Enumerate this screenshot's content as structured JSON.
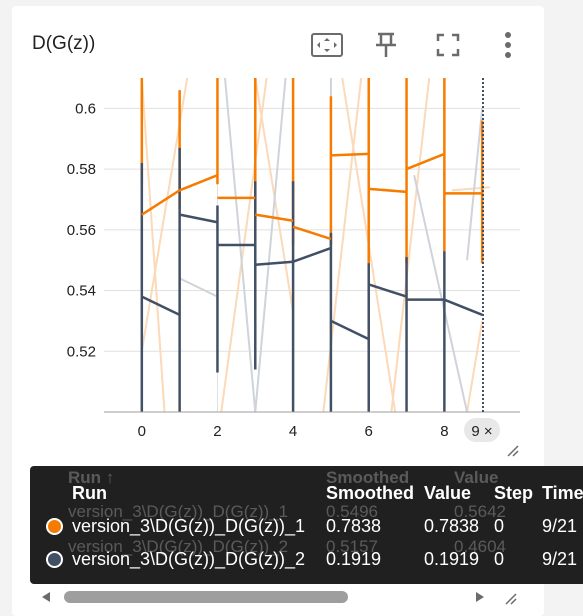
{
  "card": {
    "title": "D(G(z))",
    "icons": [
      "fit-domain-icon",
      "pin-icon",
      "fullscreen-icon",
      "more-vert-icon"
    ]
  },
  "chart_data": {
    "type": "line",
    "title": "D(G(z))",
    "xlabel": "",
    "ylabel": "",
    "xlim": [
      -1,
      10
    ],
    "ylim": [
      0.5,
      0.61
    ],
    "x_ticks": [
      0,
      2,
      4,
      6,
      8
    ],
    "x_tick_labels": [
      "0",
      "2",
      "4",
      "6",
      "8"
    ],
    "y_ticks": [
      0.52,
      0.54,
      0.56,
      0.58,
      0.6
    ],
    "y_tick_labels": [
      "0.52",
      "0.54",
      "0.56",
      "0.58",
      "0.6"
    ],
    "grid": true,
    "hover_x_label": "9 ×",
    "series": [
      {
        "name": "version_3\\D(G(z))_D(G(z))_1",
        "color": "#f57c00",
        "segments": [
          {
            "x": [
              0,
              1
            ],
            "y": [
              0.565,
              0.573
            ]
          },
          {
            "x": [
              1,
              2
            ],
            "y": [
              0.573,
              0.578
            ]
          },
          {
            "x": [
              2,
              3
            ],
            "y": [
              0.5705,
              0.5705
            ]
          },
          {
            "x": [
              3,
              4
            ],
            "y": [
              0.565,
              0.563
            ]
          },
          {
            "x": [
              4,
              5
            ],
            "y": [
              0.561,
              0.557
            ]
          },
          {
            "x": [
              5,
              6
            ],
            "y": [
              0.5845,
              0.585
            ]
          },
          {
            "x": [
              6,
              7
            ],
            "y": [
              0.5735,
              0.5725
            ]
          },
          {
            "x": [
              7,
              8
            ],
            "y": [
              0.58,
              0.585
            ]
          },
          {
            "x": [
              8,
              9
            ],
            "y": [
              0.572,
              0.572
            ]
          }
        ],
        "verticals": [
          {
            "x": 0,
            "y": [
              0.575,
              0.61
            ]
          },
          {
            "x": 1,
            "y": [
              0.567,
              0.606
            ]
          },
          {
            "x": 2,
            "y": [
              0.575,
              0.61
            ]
          },
          {
            "x": 3,
            "y": [
              0.56,
              0.61
            ]
          },
          {
            "x": 4,
            "y": [
              0.555,
              0.61
            ]
          },
          {
            "x": 5,
            "y": [
              0.555,
              0.604
            ]
          },
          {
            "x": 6,
            "y": [
              0.548,
              0.61
            ]
          },
          {
            "x": 7,
            "y": [
              0.549,
              0.61
            ]
          },
          {
            "x": 8,
            "y": [
              0.553,
              0.61
            ]
          },
          {
            "x": 9,
            "y": [
              0.549,
              0.596
            ]
          }
        ]
      },
      {
        "name": "version_3\\D(G(z))_D(G(z))_2",
        "color": "#425066",
        "segments": [
          {
            "x": [
              0,
              1
            ],
            "y": [
              0.538,
              0.532
            ]
          },
          {
            "x": [
              1,
              2
            ],
            "y": [
              0.565,
              0.5625
            ]
          },
          {
            "x": [
              2,
              3
            ],
            "y": [
              0.555,
              0.555
            ]
          },
          {
            "x": [
              3,
              4
            ],
            "y": [
              0.5485,
              0.5495
            ]
          },
          {
            "x": [
              4,
              5
            ],
            "y": [
              0.5495,
              0.554
            ]
          },
          {
            "x": [
              5,
              6
            ],
            "y": [
              0.53,
              0.524
            ]
          },
          {
            "x": [
              6,
              7
            ],
            "y": [
              0.542,
              0.538
            ]
          },
          {
            "x": [
              7,
              8
            ],
            "y": [
              0.537,
              0.537
            ]
          },
          {
            "x": [
              8,
              9
            ],
            "y": [
              0.537,
              0.532
            ]
          }
        ],
        "verticals": [
          {
            "x": 0,
            "y": [
              0.5,
              0.582
            ]
          },
          {
            "x": 1,
            "y": [
              0.5,
              0.587
            ]
          },
          {
            "x": 2,
            "y": [
              0.513,
              0.568
            ]
          },
          {
            "x": 3,
            "y": [
              0.514,
              0.576
            ]
          },
          {
            "x": 4,
            "y": [
              0.5,
              0.576
            ]
          },
          {
            "x": 5,
            "y": [
              0.5,
              0.559
            ]
          },
          {
            "x": 6,
            "y": [
              0.5,
              0.549
            ]
          },
          {
            "x": 7,
            "y": [
              0.5,
              0.551
            ]
          },
          {
            "x": 8,
            "y": [
              0.5,
              0.553
            ]
          }
        ]
      }
    ],
    "raw_series": [
      {
        "color": "#fcd9b8",
        "segments": [
          {
            "x": [
              0,
              0.6
            ],
            "y": [
              0.61,
              0.5
            ]
          },
          {
            "x": [
              0,
              1.2
            ],
            "y": [
              0.52,
              0.61
            ]
          },
          {
            "x": [
              2.1,
              3.3
            ],
            "y": [
              0.5,
              0.61
            ]
          },
          {
            "x": [
              3.0,
              4.0
            ],
            "y": [
              0.61,
              0.533
            ]
          },
          {
            "x": [
              4.8,
              5.8
            ],
            "y": [
              0.5,
              0.61
            ]
          },
          {
            "x": [
              5.3,
              6.7
            ],
            "y": [
              0.61,
              0.5
            ]
          },
          {
            "x": [
              6.6,
              7.6
            ],
            "y": [
              0.5,
              0.61
            ]
          },
          {
            "x": [
              8.2,
              9.2
            ],
            "y": [
              0.573,
              0.574
            ]
          },
          {
            "x": [
              8.6,
              9.0
            ],
            "y": [
              0.5,
              0.53
            ]
          }
        ]
      },
      {
        "color": "#cfd3da",
        "segments": [
          {
            "x": [
              1.0,
              2.0
            ],
            "y": [
              0.544,
              0.538
            ]
          },
          {
            "x": [
              2.2,
              3.0
            ],
            "y": [
              0.61,
              0.5
            ]
          },
          {
            "x": [
              3.0,
              3.8
            ],
            "y": [
              0.5,
              0.61
            ]
          },
          {
            "x": [
              5.0,
              5.0
            ],
            "y": [
              0.61,
              0.5
            ]
          },
          {
            "x": [
              7.2,
              8.6
            ],
            "y": [
              0.578,
              0.5
            ]
          },
          {
            "x": [
              8.6,
              9.0
            ],
            "y": [
              0.55,
              0.6
            ]
          }
        ]
      }
    ]
  },
  "tooltip": {
    "ghost_header": {
      "run": "Run ↑",
      "smoothed": "Smoothed",
      "value": "Value"
    },
    "ghost_rows": [
      {
        "run": "version_3\\D(G(z))_D(G(z))_1",
        "smoothed": "0.5496",
        "value": "0.5642"
      },
      {
        "run": "version_3\\D(G(z))_D(G(z))_2",
        "smoothed": "0.5157",
        "value": "0.4604"
      }
    ],
    "columns": {
      "run": "Run",
      "smoothed": "Smoothed",
      "value": "Value",
      "step": "Step",
      "time": "Time"
    },
    "rows": [
      {
        "color": "#f57c00",
        "run": "version_3\\D(G(z))_D(G(z))_1",
        "smoothed": "0.7838",
        "value": "0.7838",
        "step": "0",
        "time": "9/21"
      },
      {
        "color": "#425066",
        "run": "version_3\\D(G(z))_D(G(z))_2",
        "smoothed": "0.1919",
        "value": "0.1919",
        "step": "0",
        "time": "9/21"
      }
    ]
  }
}
